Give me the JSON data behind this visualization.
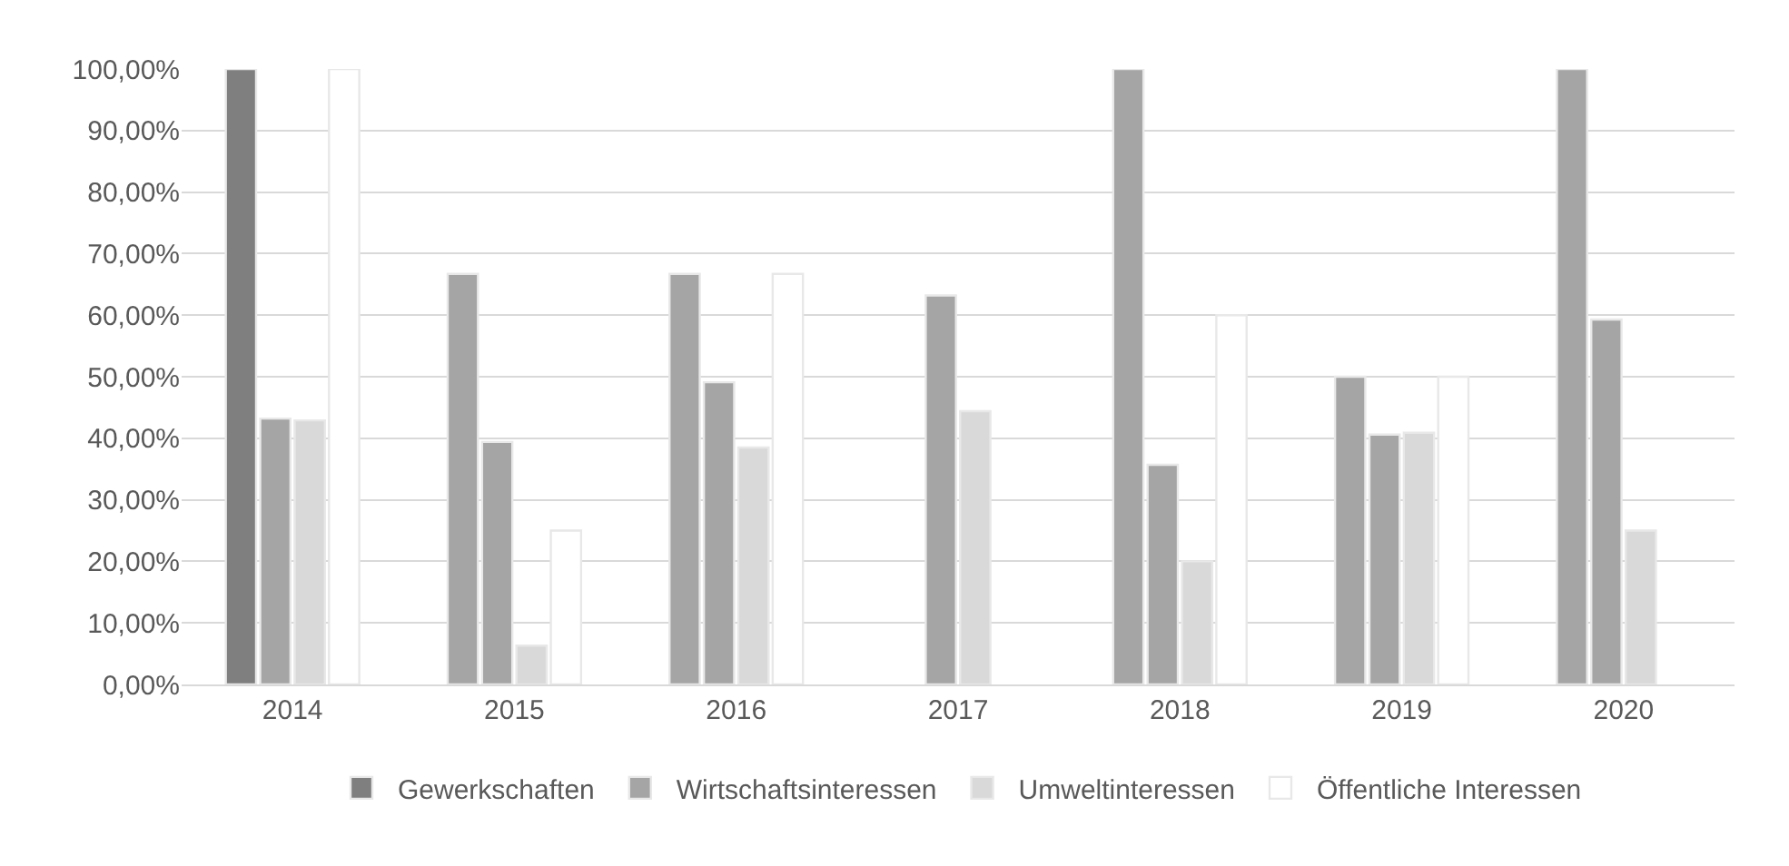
{
  "chart_data": {
    "type": "bar",
    "categories": [
      "2014",
      "2015",
      "2016",
      "2017",
      "2018",
      "2019",
      "2020"
    ],
    "series": [
      {
        "name": "Gewerkschaften",
        "color": "#a5a5a5",
        "colors": [
          "#7f7f7f",
          "#a5a5a5",
          "#a5a5a5",
          "#a5a5a5",
          "#a5a5a5",
          "#a5a5a5",
          "#a5a5a5"
        ],
        "values": [
          100,
          66.7,
          66.7,
          null,
          100,
          50,
          100
        ]
      },
      {
        "name": "Wirtschaftsinteressen",
        "color": "#a5a5a5",
        "values": [
          43.2,
          39.4,
          49.1,
          63.2,
          35.7,
          40.6,
          59.3
        ]
      },
      {
        "name": "Umweltinteressen",
        "color": "#d9d9d9",
        "values": [
          42.9,
          6.3,
          38.5,
          44.4,
          20,
          40.9,
          25
        ]
      },
      {
        "name": "Öffentliche Interessen",
        "color": "#ffffff",
        "values": [
          100,
          25,
          66.7,
          null,
          60,
          50,
          null
        ]
      }
    ],
    "ylim": [
      0,
      100
    ],
    "yticks": [
      {
        "value": 0,
        "label": "0,00%"
      },
      {
        "value": 10,
        "label": "10,00%"
      },
      {
        "value": 20,
        "label": "20,00%"
      },
      {
        "value": 30,
        "label": "30,00%"
      },
      {
        "value": 40,
        "label": "40,00%"
      },
      {
        "value": 50,
        "label": "50,00%"
      },
      {
        "value": 60,
        "label": "60,00%"
      },
      {
        "value": 70,
        "label": "70,00%"
      },
      {
        "value": 80,
        "label": "80,00%"
      },
      {
        "value": 90,
        "label": "90,00%"
      },
      {
        "value": 100,
        "label": "100,00%"
      }
    ],
    "grid": "y",
    "legend": "bottom"
  }
}
